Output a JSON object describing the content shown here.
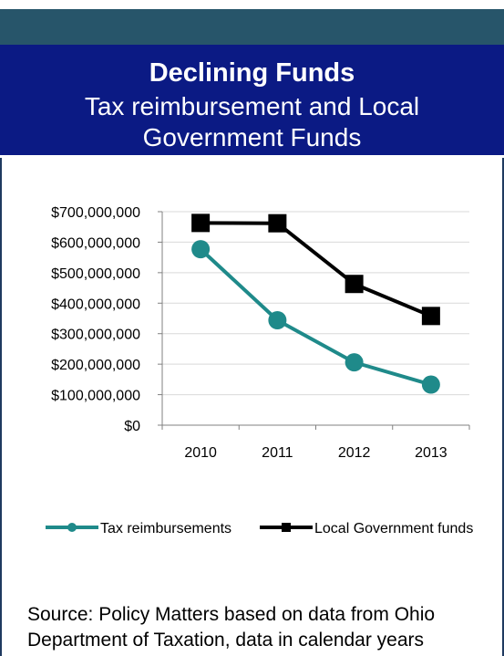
{
  "header": {
    "title": "Declining Funds",
    "subtitle": "Tax reimbursement and Local Government Funds"
  },
  "chart_data": {
    "type": "line",
    "categories": [
      "2010",
      "2011",
      "2012",
      "2013"
    ],
    "series": [
      {
        "name": "Tax reimbursements",
        "values": [
          577000000,
          344000000,
          206000000,
          133000000
        ],
        "color": "#1f8a8a",
        "marker": "circle"
      },
      {
        "name": "Local Government funds",
        "values": [
          663000000,
          662000000,
          463000000,
          358000000
        ],
        "color": "#000000",
        "marker": "square"
      }
    ],
    "ylim": [
      0,
      700000000
    ],
    "yticks": [
      "$0",
      "$100,000,000",
      "$200,000,000",
      "$300,000,000",
      "$400,000,000",
      "$500,000,000",
      "$600,000,000",
      "$700,000,000"
    ],
    "grid": true,
    "legend": "bottom"
  },
  "source": "Source: Policy Matters based on data from Ohio Department of Taxation, data in calendar years",
  "colors": {
    "banner": "#0b1a84",
    "topbar": "#27556a",
    "border": "#1f3a60"
  }
}
